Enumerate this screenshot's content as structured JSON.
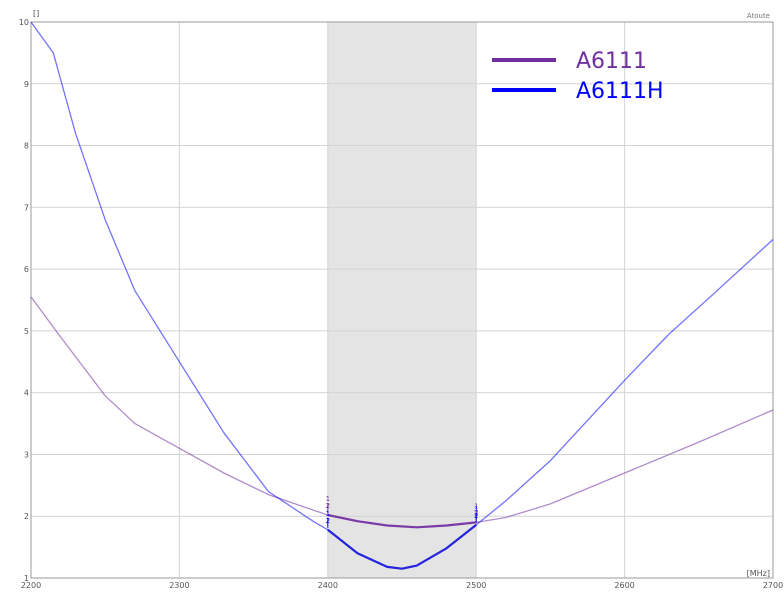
{
  "chart_data": {
    "type": "line",
    "x_unit_label": "[MHz]",
    "y_unit_label": "[]",
    "corner_label": "Atoute",
    "xlim": [
      2200,
      2700
    ],
    "ylim": [
      1,
      10
    ],
    "x_ticks": [
      "2200",
      "2300",
      "2400",
      "2500",
      "2600",
      "2700"
    ],
    "y_ticks": [
      "1",
      "2",
      "3",
      "4",
      "5",
      "6",
      "7",
      "8",
      "9",
      "10"
    ],
    "grid": true,
    "shaded_band": [
      2400,
      2500
    ],
    "shaded_color": "#e4e4e4",
    "legend_position": "top-right",
    "marker_labels": [
      "1",
      "2"
    ],
    "series": [
      {
        "name": "A6111",
        "color": "#7030a0",
        "band_color": "#7a3aa8",
        "x": [
          2200,
          2220,
          2250,
          2270,
          2300,
          2330,
          2360,
          2390,
          2400,
          2420,
          2440,
          2460,
          2480,
          2500,
          2520,
          2550,
          2600,
          2650,
          2700
        ],
        "y": [
          5.55,
          4.9,
          3.95,
          3.5,
          3.1,
          2.7,
          2.35,
          2.1,
          2.02,
          1.92,
          1.85,
          1.82,
          1.85,
          1.9,
          1.98,
          2.2,
          2.7,
          3.2,
          3.72
        ]
      },
      {
        "name": "A6111H",
        "color": "#0000ff",
        "band_color": "#2323e0",
        "x": [
          2200,
          2215,
          2230,
          2250,
          2270,
          2300,
          2330,
          2360,
          2390,
          2400,
          2420,
          2440,
          2450,
          2460,
          2480,
          2500,
          2520,
          2550,
          2600,
          2630,
          2660,
          2700
        ],
        "y": [
          10,
          9.5,
          8.2,
          6.8,
          5.65,
          4.5,
          3.35,
          2.4,
          1.92,
          1.78,
          1.4,
          1.18,
          1.15,
          1.2,
          1.48,
          1.86,
          2.25,
          2.9,
          4.2,
          4.95,
          5.6,
          6.48
        ]
      }
    ]
  }
}
